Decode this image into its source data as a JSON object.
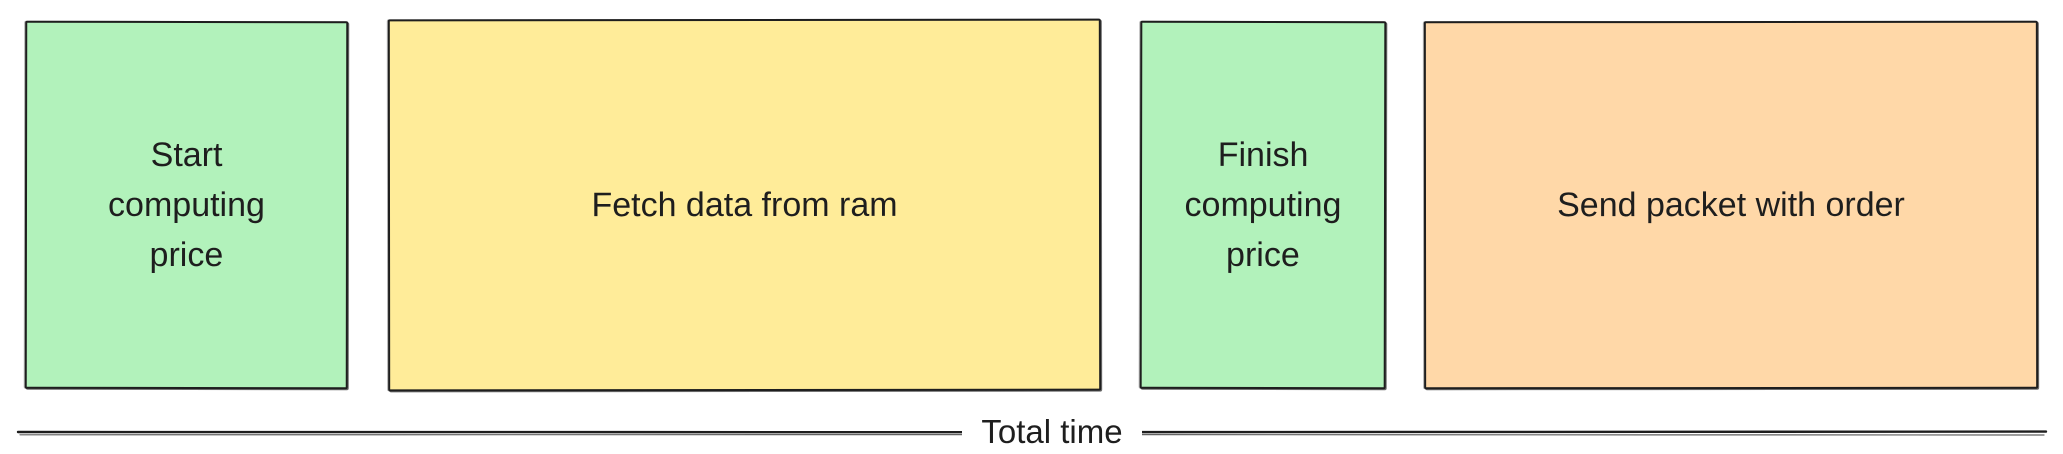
{
  "colors": {
    "start_block": "#b2f2bb",
    "fetch_block": "#ffec99",
    "finish_block": "#b2f2bb",
    "send_block": "#ffd8a8",
    "stroke": "#1e1e1e"
  },
  "blocks": [
    {
      "label": "Start\ncomputing\nprice",
      "color": "#b2f2bb"
    },
    {
      "label": "Fetch data from ram",
      "color": "#ffec99"
    },
    {
      "label": "Finish\ncomputing\nprice",
      "color": "#b2f2bb"
    },
    {
      "label": "Send packet with order",
      "color": "#ffd8a8"
    }
  ],
  "timeline": {
    "label": "Total time"
  }
}
